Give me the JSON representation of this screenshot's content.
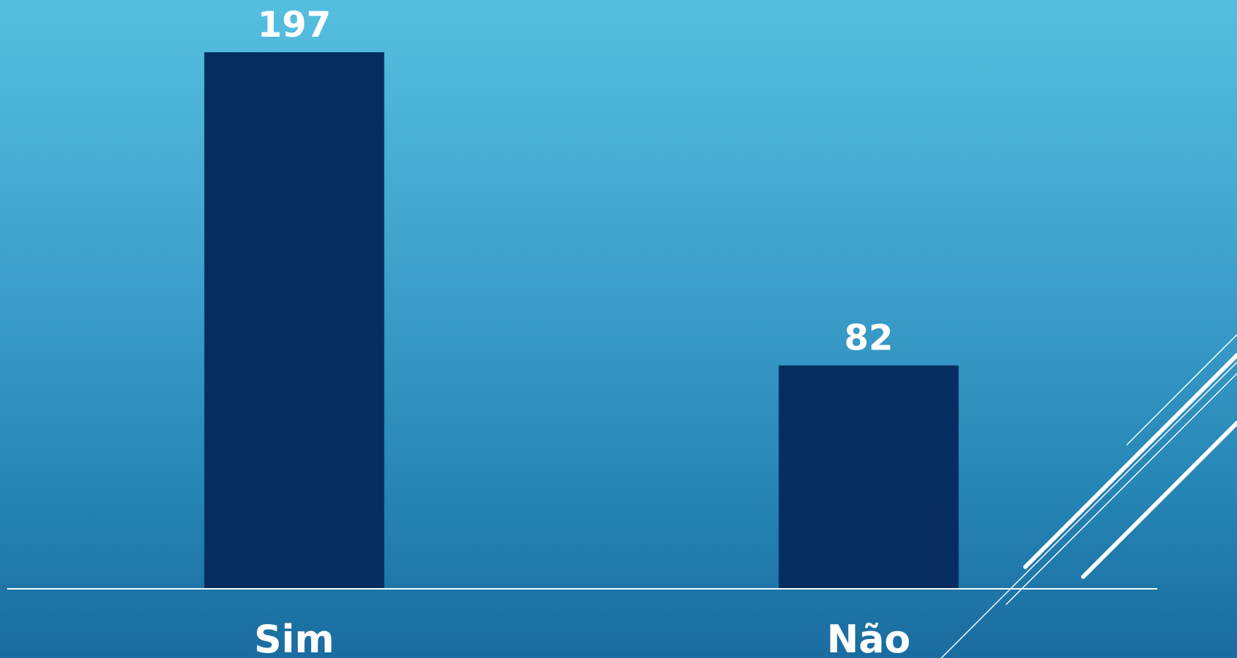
{
  "colors": {
    "bar": "#062d5f",
    "axis_line": "#ffffff",
    "text": "#ffffff",
    "background_top": "#55bfe0",
    "background_bottom": "#1a6c9f",
    "decoration_lines": "#ffffff"
  },
  "chart_data": {
    "type": "bar",
    "categories": [
      "Sim",
      "Não"
    ],
    "values": [
      197,
      82
    ],
    "data_labels": [
      "197",
      "82"
    ],
    "title": "",
    "xlabel": "",
    "ylabel": "",
    "ylim": [
      0,
      197
    ],
    "grid": false,
    "legend": "none"
  }
}
